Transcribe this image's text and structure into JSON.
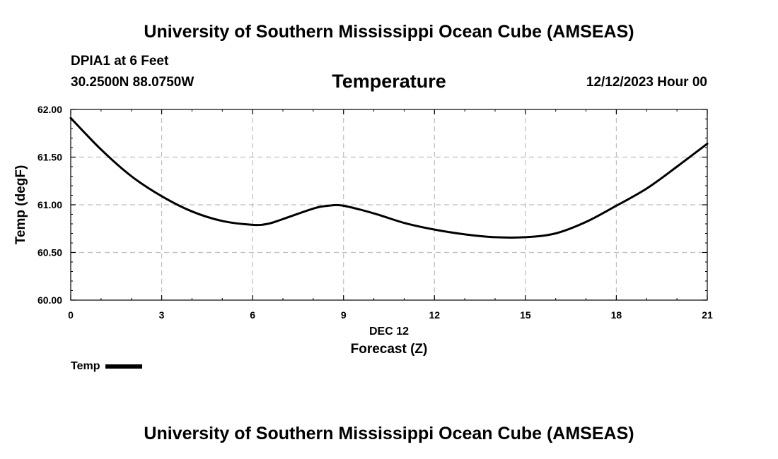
{
  "header": {
    "title_top": "University of Southern Mississippi Ocean Cube (AMSEAS)",
    "title_bottom": "University of Southern Mississippi Ocean Cube (AMSEAS)",
    "station": "DPIA1 at 6 Feet",
    "coordinates": "30.2500N  88.0750W",
    "chart_title": "Temperature",
    "date": "12/12/2023 Hour 00"
  },
  "chart_data": {
    "type": "line",
    "title": "Temperature",
    "xlabel": "Forecast (Z)",
    "xlabel_date": "DEC 12",
    "ylabel": "Temp (degF)",
    "xlim": [
      0,
      21
    ],
    "ylim": [
      60.0,
      62.0
    ],
    "xticks": [
      0,
      3,
      6,
      9,
      12,
      15,
      18,
      21
    ],
    "xtick_labels": [
      "0",
      "3",
      "6",
      "9",
      "12",
      "15",
      "18",
      "21"
    ],
    "yticks": [
      60.0,
      60.5,
      61.0,
      61.5,
      62.0
    ],
    "ytick_labels": [
      "60.00",
      "60.50",
      "61.00",
      "61.50",
      "62.00"
    ],
    "grid": true,
    "legend": "bottom-left",
    "series": [
      {
        "name": "Temp",
        "color": "#000000",
        "x": [
          0,
          1,
          2,
          3,
          4,
          5,
          6,
          6.5,
          7,
          8,
          8.5,
          9,
          10,
          11,
          12,
          13,
          14,
          15,
          16,
          17,
          18,
          19,
          20,
          21
        ],
        "values": [
          61.91,
          61.58,
          61.3,
          61.09,
          60.93,
          60.83,
          60.79,
          60.8,
          60.85,
          60.96,
          60.99,
          60.99,
          60.91,
          60.81,
          60.74,
          60.69,
          60.66,
          60.66,
          60.7,
          60.82,
          60.99,
          61.17,
          61.4,
          61.64
        ]
      }
    ]
  }
}
